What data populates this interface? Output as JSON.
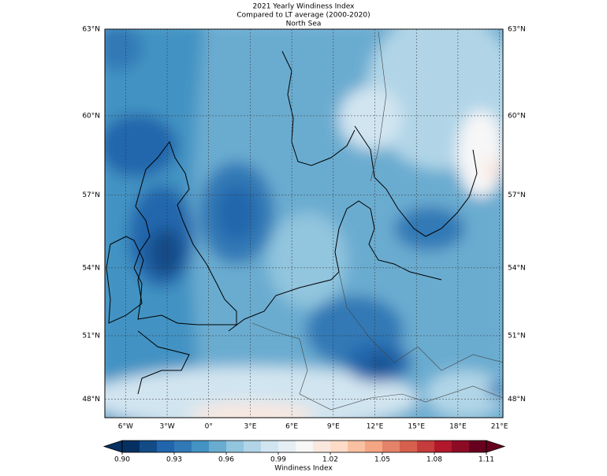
{
  "chart_data": {
    "type": "contour-map",
    "title": "2021 Yearly Windiness Index",
    "subtitle": "Compared to LT average (2000-2020)",
    "region": "North Sea",
    "xlim": [
      -7.5,
      21.25
    ],
    "ylim": [
      47.1,
      63
    ],
    "xticks": [
      {
        "value": -6,
        "label": "6°W"
      },
      {
        "value": -3,
        "label": "3°W"
      },
      {
        "value": 0,
        "label": "0°"
      },
      {
        "value": 3,
        "label": "3°E"
      },
      {
        "value": 6,
        "label": "6°E"
      },
      {
        "value": 9,
        "label": "9°E"
      },
      {
        "value": 12,
        "label": "12°E"
      },
      {
        "value": 15,
        "label": "15°E"
      },
      {
        "value": 18,
        "label": "18°E"
      },
      {
        "value": 21,
        "label": "21°E"
      }
    ],
    "yticks": [
      {
        "value": 48,
        "label": "48°N"
      },
      {
        "value": 51,
        "label": "51°N"
      },
      {
        "value": 54,
        "label": "54°N"
      },
      {
        "value": 57,
        "label": "57°N"
      },
      {
        "value": 60,
        "label": "60°N"
      },
      {
        "value": 63,
        "label": "63°N"
      }
    ],
    "grid": true,
    "colorbar": {
      "label": "Windiness Index",
      "lim": [
        0.9,
        1.11
      ],
      "extend": "both",
      "ticks": [
        {
          "value": 0.9,
          "label": "0.90"
        },
        {
          "value": 0.93,
          "label": "0.93"
        },
        {
          "value": 0.96,
          "label": "0.96"
        },
        {
          "value": 0.99,
          "label": "0.99"
        },
        {
          "value": 1.02,
          "label": "1.02"
        },
        {
          "value": 1.05,
          "label": "1.05"
        },
        {
          "value": 1.08,
          "label": "1.08"
        },
        {
          "value": 1.11,
          "label": "1.11"
        }
      ],
      "colors": [
        "#053061",
        "#134b87",
        "#2166ac",
        "#3079b6",
        "#4393c3",
        "#6aacd0",
        "#92c5de",
        "#b1d5e7",
        "#d1e5f0",
        "#e4eef4",
        "#f7f7f7",
        "#fae8df",
        "#fddbc7",
        "#f9c0a1",
        "#f4a582",
        "#e5826a",
        "#d6604d",
        "#c43c3c",
        "#b2182b",
        "#8d0c25",
        "#67001f"
      ]
    }
  }
}
